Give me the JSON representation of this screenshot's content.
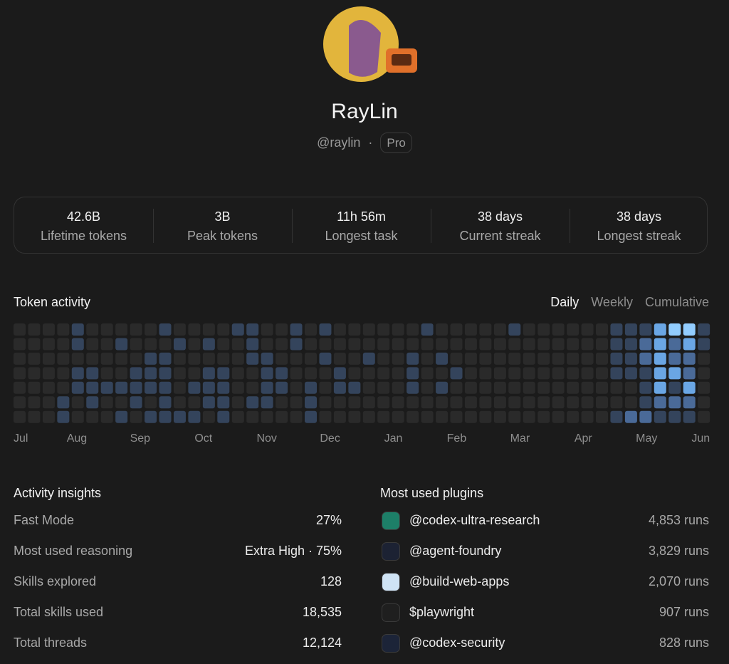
{
  "profile": {
    "name": "RayLin",
    "handle": "@raylin",
    "separator": "·",
    "plan": "Pro"
  },
  "stats": [
    {
      "value": "42.6B",
      "label": "Lifetime tokens"
    },
    {
      "value": "3B",
      "label": "Peak tokens"
    },
    {
      "value": "11h 56m",
      "label": "Longest task"
    },
    {
      "value": "38 days",
      "label": "Current streak"
    },
    {
      "value": "38 days",
      "label": "Longest streak"
    }
  ],
  "activity": {
    "title": "Token activity",
    "tabs": [
      "Daily",
      "Weekly",
      "Cumulative"
    ],
    "active_tab": 0,
    "months": [
      "Jul",
      "Aug",
      "Sep",
      "Oct",
      "Nov",
      "Dec",
      "Jan",
      "Feb",
      "Mar",
      "Apr",
      "May",
      "Jun"
    ],
    "grid": [
      [
        0,
        0,
        0,
        0,
        1,
        0,
        0,
        0,
        0,
        0,
        1,
        0,
        0,
        0,
        0,
        1,
        1,
        0,
        0,
        1,
        0,
        1,
        0,
        0,
        0,
        0,
        0,
        0,
        1,
        0,
        0,
        0,
        0,
        0,
        1,
        0,
        0,
        0,
        0,
        0,
        0,
        1,
        1,
        1,
        3,
        4,
        4,
        1
      ],
      [
        0,
        0,
        0,
        0,
        1,
        0,
        0,
        1,
        0,
        0,
        0,
        1,
        0,
        1,
        0,
        0,
        1,
        0,
        0,
        1,
        0,
        0,
        0,
        0,
        0,
        0,
        0,
        0,
        0,
        0,
        0,
        0,
        0,
        0,
        0,
        0,
        0,
        0,
        0,
        0,
        0,
        1,
        1,
        2,
        3,
        2,
        3,
        1
      ],
      [
        0,
        0,
        0,
        0,
        0,
        0,
        0,
        0,
        0,
        1,
        1,
        0,
        0,
        0,
        0,
        0,
        1,
        1,
        0,
        0,
        0,
        1,
        0,
        0,
        1,
        0,
        0,
        1,
        0,
        1,
        0,
        0,
        0,
        0,
        0,
        0,
        0,
        0,
        0,
        0,
        0,
        1,
        1,
        2,
        3,
        2,
        2,
        0
      ],
      [
        0,
        0,
        0,
        0,
        1,
        1,
        0,
        0,
        1,
        1,
        1,
        0,
        0,
        1,
        1,
        0,
        0,
        1,
        1,
        0,
        0,
        0,
        1,
        0,
        0,
        0,
        0,
        1,
        0,
        0,
        1,
        0,
        0,
        0,
        0,
        0,
        0,
        0,
        0,
        0,
        0,
        1,
        1,
        1,
        3,
        3,
        2,
        0
      ],
      [
        0,
        0,
        0,
        0,
        1,
        1,
        1,
        1,
        1,
        1,
        1,
        0,
        1,
        1,
        1,
        0,
        0,
        1,
        1,
        0,
        1,
        0,
        1,
        1,
        0,
        0,
        0,
        1,
        0,
        1,
        0,
        0,
        0,
        0,
        0,
        0,
        0,
        0,
        0,
        0,
        0,
        0,
        0,
        1,
        3,
        1,
        3,
        0
      ],
      [
        0,
        0,
        0,
        1,
        0,
        1,
        0,
        0,
        1,
        0,
        1,
        0,
        0,
        1,
        1,
        0,
        1,
        1,
        0,
        0,
        1,
        0,
        0,
        0,
        0,
        0,
        0,
        0,
        0,
        0,
        0,
        0,
        0,
        0,
        0,
        0,
        0,
        0,
        0,
        0,
        0,
        0,
        0,
        1,
        2,
        2,
        2,
        0
      ],
      [
        0,
        0,
        0,
        1,
        0,
        0,
        0,
        1,
        0,
        1,
        1,
        1,
        1,
        0,
        1,
        0,
        0,
        0,
        0,
        0,
        1,
        0,
        0,
        0,
        0,
        0,
        0,
        0,
        0,
        0,
        0,
        0,
        0,
        0,
        0,
        0,
        0,
        0,
        0,
        0,
        0,
        1,
        2,
        2,
        1,
        1,
        1,
        0
      ]
    ]
  },
  "insights": {
    "title": "Activity insights",
    "rows": [
      {
        "label": "Fast Mode",
        "value": "27%"
      },
      {
        "label": "Most used reasoning",
        "value": "Extra High · 75%"
      },
      {
        "label": "Skills explored",
        "value": "128"
      },
      {
        "label": "Total skills used",
        "value": "18,535"
      },
      {
        "label": "Total threads",
        "value": "12,124"
      }
    ]
  },
  "plugins": {
    "title": "Most used plugins",
    "rows": [
      {
        "name": "@codex-ultra-research",
        "runs": "4,853 runs"
      },
      {
        "name": "@agent-foundry",
        "runs": "3,829 runs"
      },
      {
        "name": "@build-web-apps",
        "runs": "2,070 runs"
      },
      {
        "name": "$playwright",
        "runs": "907 runs"
      },
      {
        "name": "@codex-security",
        "runs": "828 runs"
      }
    ]
  }
}
